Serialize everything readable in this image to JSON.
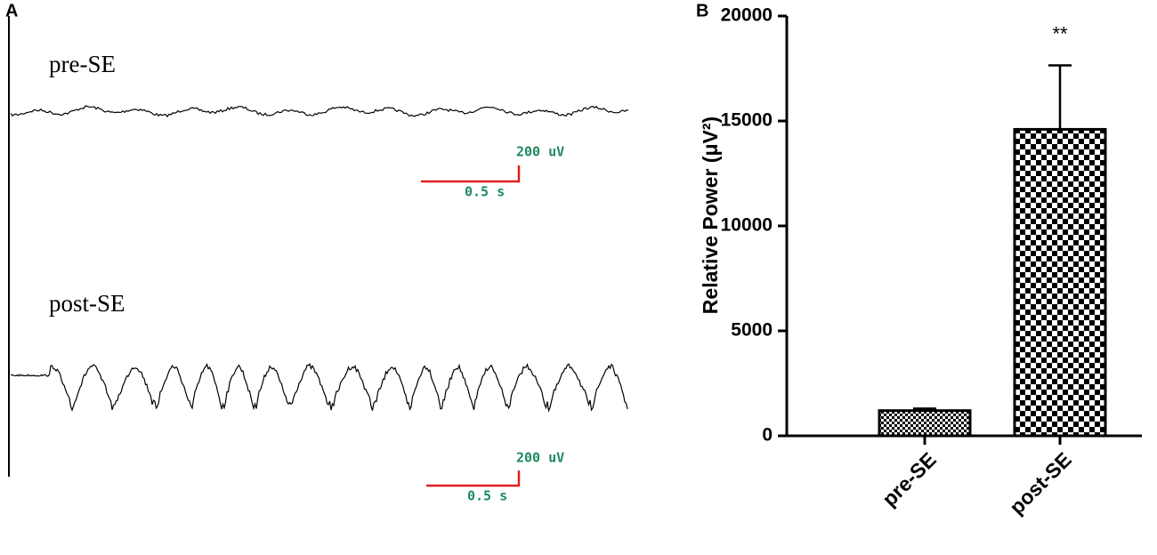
{
  "panel_a": {
    "label": "A",
    "traces": [
      {
        "label": "pre-SE",
        "scale_y": "200 uV",
        "scale_x": "0.5 s"
      },
      {
        "label": "post-SE",
        "scale_y": "200 uV",
        "scale_x": "0.5 s"
      }
    ]
  },
  "chart_data": {
    "type": "bar",
    "panel_label": "B",
    "ylabel": "Relative Power (μV²)",
    "categories": [
      "pre-SE",
      "post-SE"
    ],
    "values": [
      1200,
      14600
    ],
    "errors": [
      100,
      3050
    ],
    "value_annotations": [
      null,
      "**"
    ],
    "color": "#000000",
    "ylim": [
      0,
      20000
    ],
    "yticks": [
      0,
      5000,
      10000,
      15000,
      20000
    ]
  }
}
